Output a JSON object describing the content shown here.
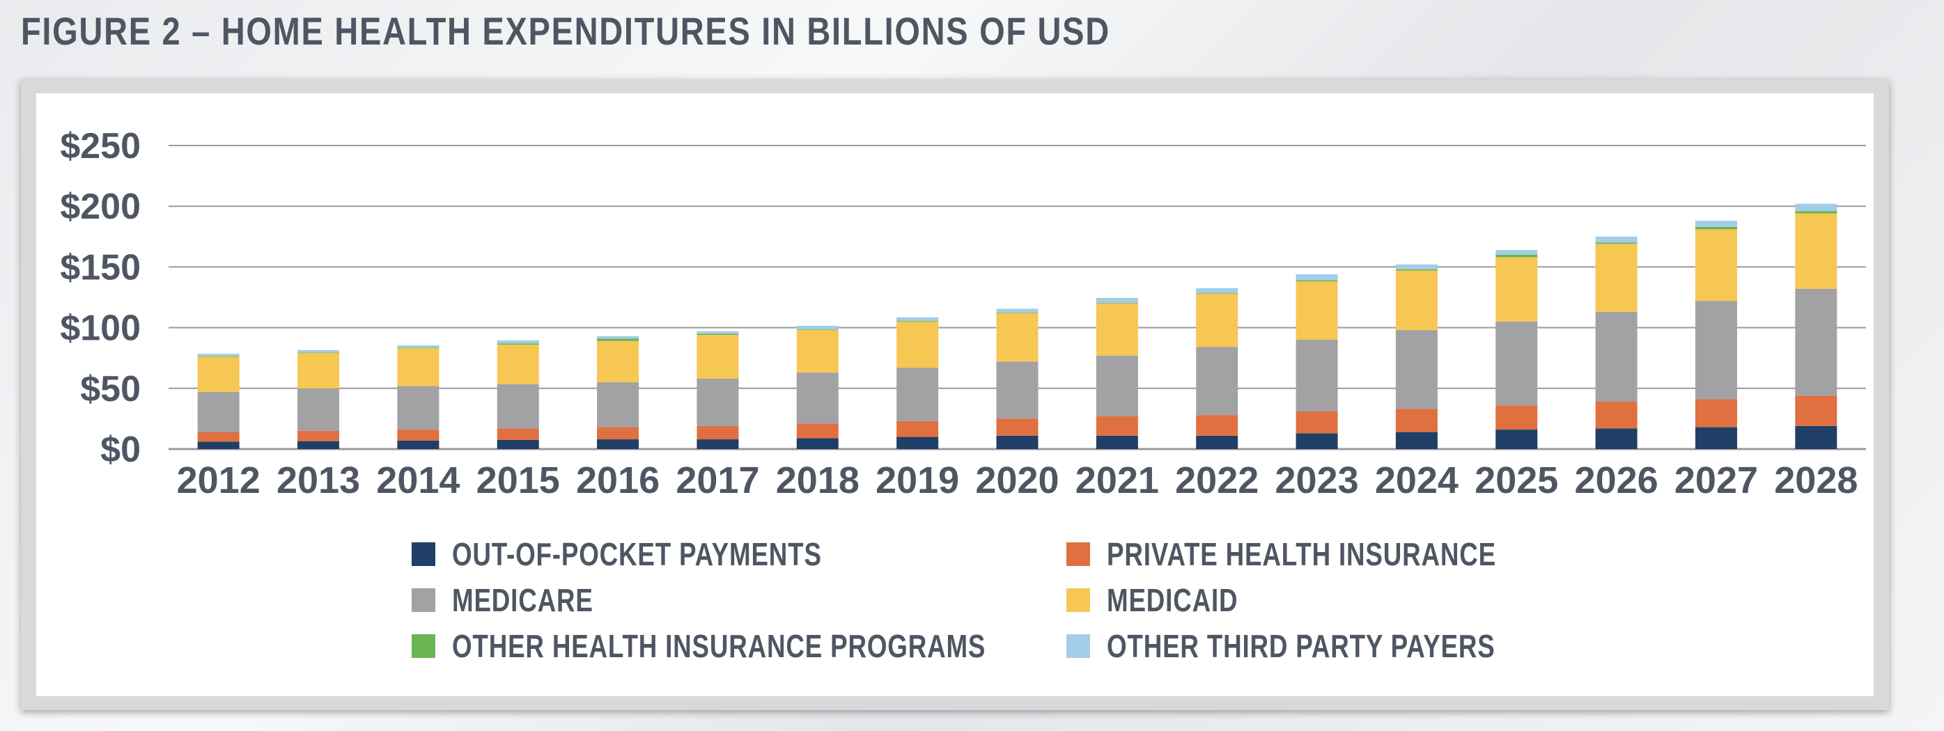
{
  "figure": {
    "title": "FIGURE 2 – HOME HEALTH EXPENDITURES IN BILLIONS OF USD"
  },
  "chart_data": {
    "type": "bar",
    "stacked": true,
    "title": "",
    "xlabel": "",
    "ylabel": "",
    "ylim": [
      0,
      250
    ],
    "y_ticks": [
      0,
      50,
      100,
      150,
      200,
      250
    ],
    "y_tick_labels": [
      "$0",
      "$50",
      "$100",
      "$150",
      "$200",
      "$250"
    ],
    "grid": "horizontal",
    "legend_position": "bottom",
    "categories": [
      "2012",
      "2013",
      "2014",
      "2015",
      "2016",
      "2017",
      "2018",
      "2019",
      "2020",
      "2021",
      "2022",
      "2023",
      "2024",
      "2025",
      "2026",
      "2027",
      "2028"
    ],
    "series": [
      {
        "name": "OUT-OF-POCKET PAYMENTS",
        "color": "#1f3f66",
        "values": [
          6,
          6.5,
          7,
          7.5,
          8,
          8,
          9,
          10,
          11,
          11,
          11,
          13,
          14,
          16,
          17,
          18,
          19
        ]
      },
      {
        "name": "PRIVATE HEALTH INSURANCE",
        "color": "#e0703f",
        "values": [
          8,
          8.5,
          9,
          9.5,
          10,
          11,
          12,
          13,
          14,
          16,
          17,
          18,
          19,
          20,
          22,
          23,
          25
        ]
      },
      {
        "name": "MEDICARE",
        "color": "#a2a2a4",
        "values": [
          33,
          35,
          36,
          36.5,
          37,
          39,
          42,
          44,
          47,
          50,
          56,
          59,
          65,
          69,
          74,
          81,
          88
        ]
      },
      {
        "name": "MEDICAID",
        "color": "#f6c752",
        "values": [
          29,
          29,
          31,
          32.5,
          34,
          36,
          35,
          38,
          40,
          43,
          44,
          48,
          49,
          53,
          56,
          59,
          62
        ]
      },
      {
        "name": "OTHER HEALTH INSURANCE PROGRAMS",
        "color": "#6ab553",
        "values": [
          0.5,
          0.5,
          0.5,
          1,
          2,
          1,
          0.5,
          0.5,
          0.5,
          0.5,
          0.5,
          1,
          1,
          2,
          1,
          2,
          2
        ]
      },
      {
        "name": "OTHER THIRD PARTY PAYERS",
        "color": "#a3cde9",
        "values": [
          2,
          2,
          2,
          2.5,
          2,
          2,
          3,
          3,
          3,
          4,
          4,
          5,
          4,
          4,
          5,
          5,
          6
        ]
      }
    ]
  }
}
